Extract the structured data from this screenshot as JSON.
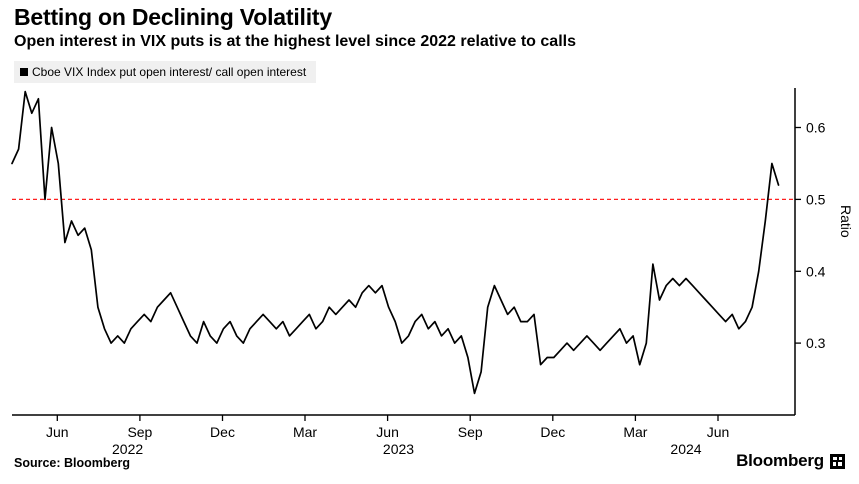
{
  "header": {
    "title": "Betting on Declining Volatility",
    "subtitle": "Open interest in VIX puts is at the highest level since 2022 relative to calls"
  },
  "legend": {
    "label": "Cboe VIX Index put open interest/ call open interest",
    "marker_color": "#000000",
    "background": "#f0f0f0"
  },
  "footer": {
    "source": "Source: Bloomberg",
    "brand": "Bloomberg"
  },
  "chart_data": {
    "type": "line",
    "title": "Betting on Declining Volatility",
    "subtitle": "Open interest in VIX puts is at the highest level since 2022 relative to calls",
    "series_name": "Cboe VIX Index put open interest/ call open interest",
    "ylabel": "Ratio",
    "line_color": "#000000",
    "background": "#ffffff",
    "grid": false,
    "legend_position": "top-left",
    "reference_line": {
      "value": 0.5,
      "color": "#ff1f1f",
      "style": "dashed"
    },
    "ylim": [
      0.2,
      0.655
    ],
    "yticks": [
      0.3,
      0.4,
      0.5,
      0.6
    ],
    "x_axis_range": [
      2022.28,
      2024.65
    ],
    "x_series_range": [
      2022.28,
      2024.6
    ],
    "xticks": [
      {
        "x": 2022.417,
        "label": "Jun"
      },
      {
        "x": 2022.667,
        "label": "Sep"
      },
      {
        "x": 2022.917,
        "label": "Dec"
      },
      {
        "x": 2023.167,
        "label": "Mar"
      },
      {
        "x": 2023.417,
        "label": "Jun"
      },
      {
        "x": 2023.667,
        "label": "Sep"
      },
      {
        "x": 2023.917,
        "label": "Dec"
      },
      {
        "x": 2024.167,
        "label": "Mar"
      },
      {
        "x": 2024.417,
        "label": "Jun"
      }
    ],
    "year_labels": [
      {
        "x": 2022.63,
        "label": "2022"
      },
      {
        "x": 2023.45,
        "label": "2023"
      },
      {
        "x": 2024.32,
        "label": "2024"
      }
    ],
    "values": [
      0.55,
      0.57,
      0.65,
      0.62,
      0.64,
      0.5,
      0.6,
      0.55,
      0.44,
      0.47,
      0.45,
      0.46,
      0.43,
      0.35,
      0.32,
      0.3,
      0.31,
      0.3,
      0.32,
      0.33,
      0.34,
      0.33,
      0.35,
      0.36,
      0.37,
      0.35,
      0.33,
      0.31,
      0.3,
      0.33,
      0.31,
      0.3,
      0.32,
      0.33,
      0.31,
      0.3,
      0.32,
      0.33,
      0.34,
      0.33,
      0.32,
      0.33,
      0.31,
      0.32,
      0.33,
      0.34,
      0.32,
      0.33,
      0.35,
      0.34,
      0.35,
      0.36,
      0.35,
      0.37,
      0.38,
      0.37,
      0.38,
      0.35,
      0.33,
      0.3,
      0.31,
      0.33,
      0.34,
      0.32,
      0.33,
      0.31,
      0.32,
      0.3,
      0.31,
      0.28,
      0.23,
      0.26,
      0.35,
      0.38,
      0.36,
      0.34,
      0.35,
      0.33,
      0.33,
      0.34,
      0.27,
      0.28,
      0.28,
      0.29,
      0.3,
      0.29,
      0.3,
      0.31,
      0.3,
      0.29,
      0.3,
      0.31,
      0.32,
      0.3,
      0.31,
      0.27,
      0.3,
      0.41,
      0.36,
      0.38,
      0.39,
      0.38,
      0.39,
      0.38,
      0.37,
      0.36,
      0.35,
      0.34,
      0.33,
      0.34,
      0.32,
      0.33,
      0.35,
      0.4,
      0.47,
      0.55,
      0.52
    ]
  }
}
